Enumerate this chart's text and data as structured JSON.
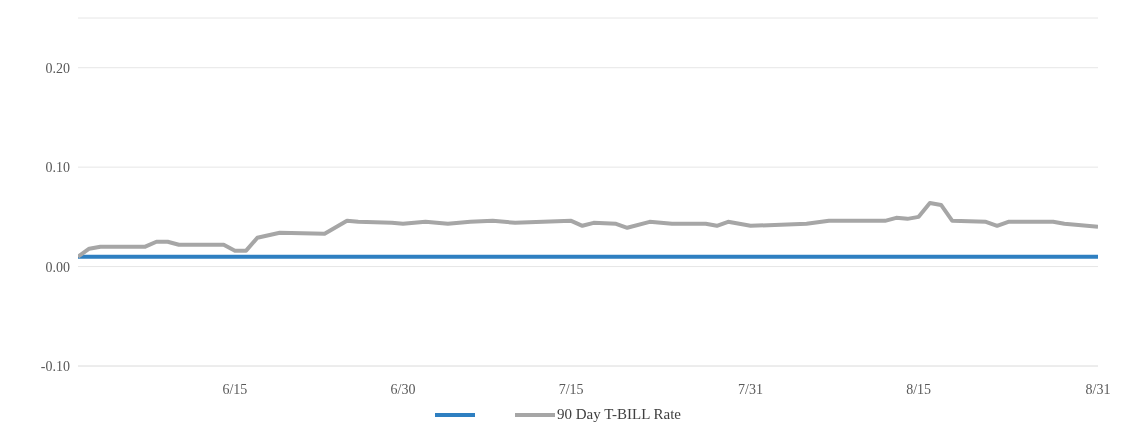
{
  "chart_data": {
    "type": "line",
    "x": [
      "--06-01",
      "--06-02",
      "--06-03",
      "--06-07",
      "--06-08",
      "--06-09",
      "--06-10",
      "--06-14",
      "--06-15",
      "--06-16",
      "--06-17",
      "--06-19",
      "--06-23",
      "--06-25",
      "--06-26",
      "--06-29",
      "--06-30",
      "--07-02",
      "--07-04",
      "--07-06",
      "--07-08",
      "--07-10",
      "--07-15",
      "--07-16",
      "--07-17",
      "--07-19",
      "--07-20",
      "--07-22",
      "--07-24",
      "--07-27",
      "--07-28",
      "--07-29",
      "--07-31",
      "--08-05",
      "--08-07",
      "--08-12",
      "--08-13",
      "--08-14",
      "--08-15",
      "--08-16",
      "--08-17",
      "--08-18",
      "--08-21",
      "--08-22",
      "--08-23",
      "--08-27",
      "--08-28",
      "--08-31"
    ],
    "series": [
      {
        "color": "#2e7fc1",
        "values": [
          0.01,
          0.01,
          0.01,
          0.01,
          0.01,
          0.01,
          0.01,
          0.01,
          0.01,
          0.01,
          0.01,
          0.01,
          0.01,
          0.01,
          0.01,
          0.01,
          0.01,
          0.01,
          0.01,
          0.01,
          0.01,
          0.01,
          0.01,
          0.01,
          0.01,
          0.01,
          0.01,
          0.01,
          0.01,
          0.01,
          0.01,
          0.01,
          0.01,
          0.01,
          0.01,
          0.01,
          0.01,
          0.01,
          0.01,
          0.01,
          0.01,
          0.01,
          0.01,
          0.01,
          0.01,
          0.01,
          0.01,
          0.01
        ]
      },
      {
        "name": "90 Day T-BILL Rate",
        "color": "#a6a6a6",
        "values": [
          0.01,
          0.018,
          0.02,
          0.02,
          0.025,
          0.025,
          0.022,
          0.022,
          0.016,
          0.016,
          0.029,
          0.034,
          0.033,
          0.046,
          0.045,
          0.044,
          0.043,
          0.045,
          0.043,
          0.045,
          0.046,
          0.044,
          0.046,
          0.041,
          0.044,
          0.043,
          0.039,
          0.045,
          0.043,
          0.043,
          0.041,
          0.045,
          0.041,
          0.043,
          0.046,
          0.046,
          0.049,
          0.048,
          0.05,
          0.064,
          0.062,
          0.046,
          0.045,
          0.041,
          0.045,
          0.045,
          0.043,
          0.04
        ]
      }
    ],
    "xlim": [
      "--06-01",
      "--08-31"
    ],
    "xticks": [
      {
        "value": "--06-15",
        "label": "6/15"
      },
      {
        "value": "--06-30",
        "label": "6/30"
      },
      {
        "value": "--07-15",
        "label": "7/15"
      },
      {
        "value": "--07-31",
        "label": "7/31"
      },
      {
        "value": "--08-15",
        "label": "8/15"
      },
      {
        "value": "--08-31",
        "label": "8/31"
      }
    ],
    "ylim": [
      -0.1,
      0.25
    ],
    "yticks": [
      {
        "value": -0.1,
        "label": "-0.10"
      },
      {
        "value": 0,
        "label": "0.00"
      },
      {
        "value": 0.1,
        "label": "0.10"
      },
      {
        "value": 0.2,
        "label": "0.20"
      }
    ],
    "grid": "y",
    "legend": "bottom",
    "marker": "none",
    "line_style": "solid"
  }
}
